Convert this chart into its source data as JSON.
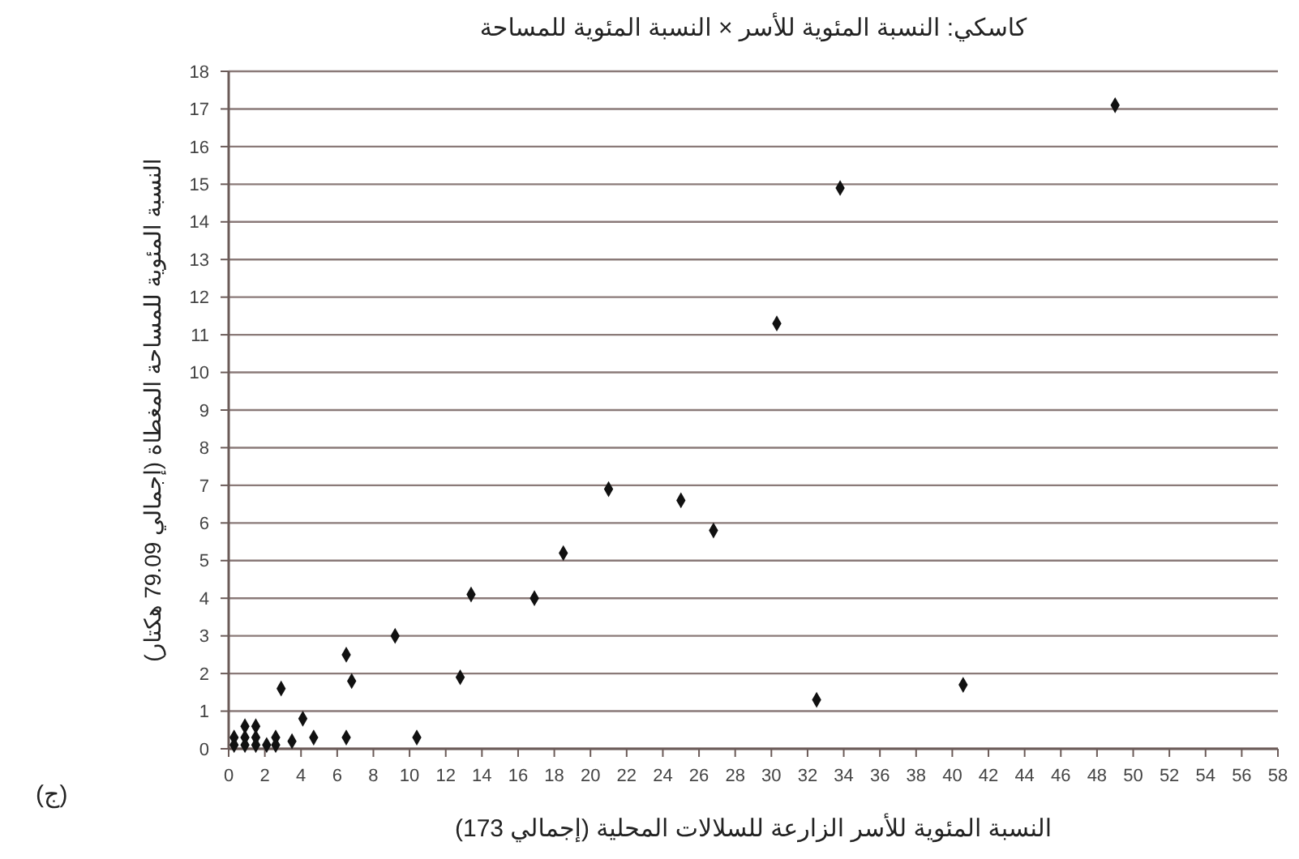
{
  "chart_data": {
    "type": "scatter",
    "title": "كاسكي: النسبة المئوية للأسر × النسبة المئوية للمساحة",
    "xlabel": "النسبة المئوية للأسر الزارعة للسلالات المحلية (إجمالي 173)",
    "ylabel": "النسبة المئوية للمساحة المغطاة (إجمالي 79.09 هكتار)",
    "annotations": [
      "(ج)"
    ],
    "series": [
      {
        "color": "#111111",
        "x": [
          49.0,
          33.8,
          30.3,
          21.0,
          25.0,
          26.8,
          18.5,
          13.4,
          16.9,
          12.8,
          32.5,
          40.6,
          9.2,
          2.9,
          4.1,
          4.7,
          6.5,
          6.8,
          6.5,
          10.4,
          3.5,
          0.3,
          0.3,
          0.9,
          0.9,
          0.9,
          1.5,
          1.5,
          1.5,
          2.1,
          2.6,
          2.6
        ],
        "values": [
          17.1,
          14.9,
          11.3,
          6.9,
          6.6,
          5.8,
          5.2,
          4.1,
          4.0,
          1.9,
          1.3,
          1.7,
          3.0,
          1.6,
          0.8,
          0.3,
          2.5,
          1.8,
          0.3,
          0.3,
          0.2,
          0.3,
          0.1,
          0.6,
          0.3,
          0.1,
          0.6,
          0.3,
          0.1,
          0.1,
          0.3,
          0.1
        ]
      }
    ],
    "xlim": [
      0,
      58
    ],
    "xticks": [
      0,
      2,
      4,
      6,
      8,
      10,
      12,
      14,
      16,
      18,
      20,
      22,
      24,
      26,
      28,
      30,
      32,
      34,
      36,
      38,
      40,
      42,
      44,
      46,
      48,
      50,
      52,
      54,
      56,
      58
    ],
    "ylim": [
      0,
      18
    ],
    "yticks": [
      0,
      1,
      2,
      3,
      4,
      5,
      6,
      7,
      8,
      9,
      10,
      11,
      12,
      13,
      14,
      15,
      16,
      17,
      18
    ],
    "grid": "y",
    "marker": "diamond"
  }
}
